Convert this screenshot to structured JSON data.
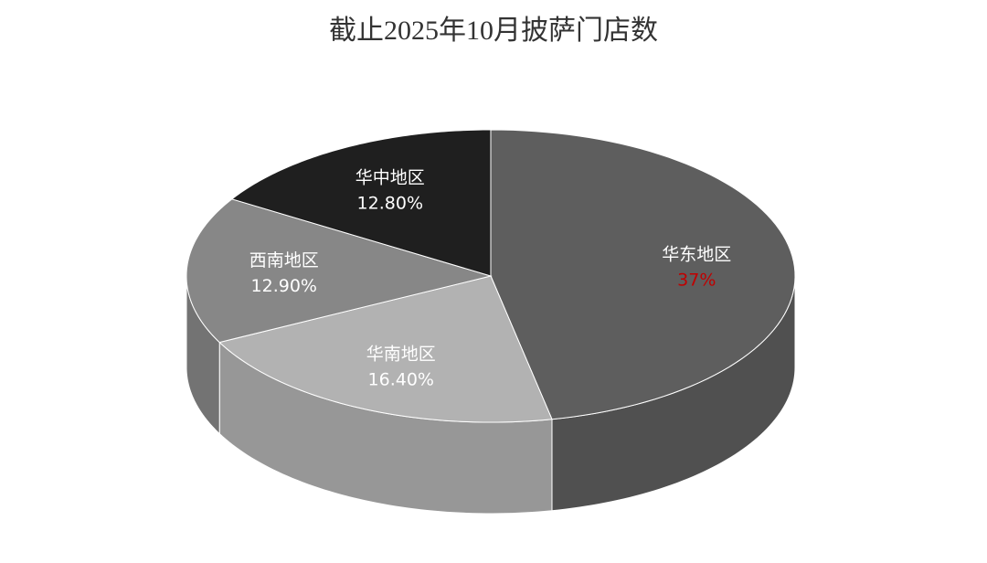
{
  "chart_data": {
    "type": "pie3d",
    "title": "截止2025年10月披萨门店数",
    "categories": [
      "华东地区",
      "华南地区",
      "西南地区",
      "华中地区"
    ],
    "values": [
      37,
      16.4,
      12.9,
      12.8
    ],
    "value_labels": [
      "37%",
      "16.40%",
      "12.90%",
      "12.80%"
    ],
    "colors": [
      "#5e5e5e",
      "#b2b2b2",
      "#878787",
      "#1f1f1f"
    ],
    "value_label_colors": [
      "#c00000",
      "#ffffff",
      "#ffffff",
      "#ffffff"
    ]
  }
}
